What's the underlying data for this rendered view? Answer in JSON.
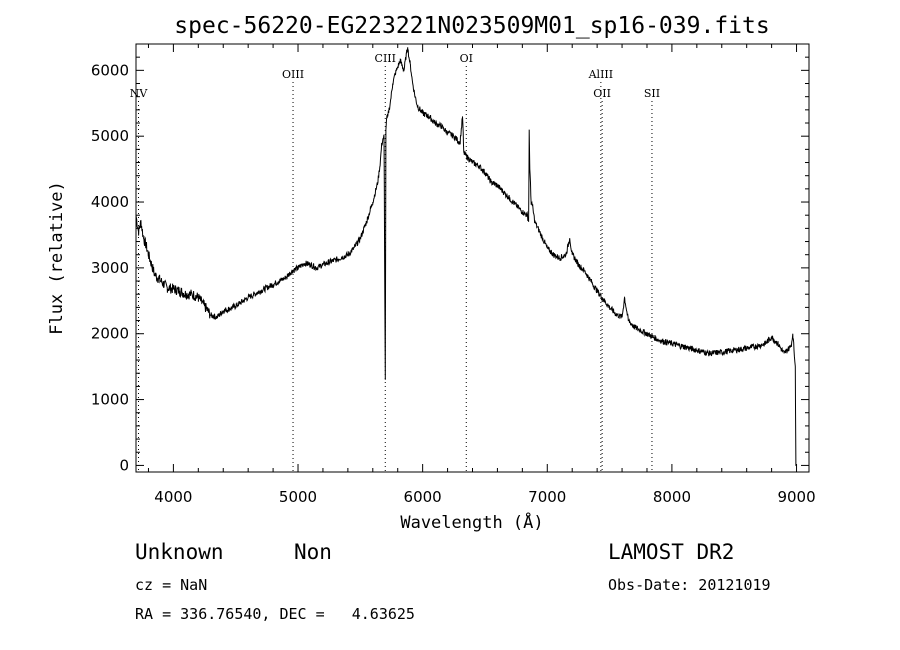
{
  "chart_data": {
    "type": "line",
    "title": "spec-56220-EG223221N023509M01_sp16-039.fits",
    "xlabel": "Wavelength (Å)",
    "ylabel": "Flux (relative)",
    "xlim": [
      3700,
      9100
    ],
    "ylim": [
      -100,
      6400
    ],
    "xticks": [
      4000,
      5000,
      6000,
      7000,
      8000,
      9000
    ],
    "yticks": [
      0,
      1000,
      2000,
      3000,
      4000,
      5000,
      6000
    ],
    "grid": false,
    "series": [
      {
        "x": [
          3700,
          3720,
          3740,
          3760,
          3780,
          3800,
          3850,
          3900,
          3950,
          4000,
          4050,
          4100,
          4150,
          4200,
          4250,
          4300,
          4350,
          4400,
          4450,
          4500,
          4600,
          4700,
          4800,
          4900,
          4950,
          5000,
          5050,
          5100,
          5150,
          5200,
          5300,
          5400,
          5450,
          5500,
          5550,
          5600,
          5640,
          5660,
          5670,
          5680,
          5690,
          5700,
          5705,
          5710,
          5720,
          5740,
          5760,
          5780,
          5800,
          5820,
          5850,
          5870,
          5880,
          5890,
          5900,
          5920,
          5940,
          5960,
          6000,
          6050,
          6100,
          6150,
          6200,
          6250,
          6300,
          6320,
          6330,
          6350,
          6400,
          6450,
          6500,
          6550,
          6600,
          6650,
          6700,
          6750,
          6800,
          6840,
          6850,
          6855,
          6860,
          6870,
          6880,
          6900,
          6950,
          7000,
          7050,
          7100,
          7150,
          7180,
          7200,
          7220,
          7250,
          7300,
          7350,
          7400,
          7450,
          7500,
          7550,
          7600,
          7620,
          7650,
          7700,
          7750,
          7800,
          7850,
          7900,
          8000,
          8100,
          8200,
          8300,
          8400,
          8500,
          8600,
          8700,
          8750,
          8800,
          8850,
          8900,
          8950,
          8960,
          8970,
          8980,
          8985,
          8990,
          8995,
          9000
        ],
        "y": [
          3800,
          3550,
          3700,
          3450,
          3350,
          3200,
          2900,
          2800,
          2700,
          2680,
          2650,
          2600,
          2600,
          2550,
          2420,
          2280,
          2250,
          2350,
          2380,
          2420,
          2550,
          2650,
          2750,
          2850,
          2950,
          3000,
          3070,
          3050,
          3000,
          3050,
          3120,
          3200,
          3300,
          3450,
          3700,
          4000,
          4300,
          4600,
          4850,
          4950,
          5000,
          1300,
          5100,
          5250,
          5300,
          5500,
          5800,
          5950,
          6050,
          6150,
          6000,
          6250,
          6350,
          6200,
          6100,
          5800,
          5600,
          5450,
          5350,
          5300,
          5200,
          5150,
          5050,
          5000,
          4900,
          5300,
          4750,
          4700,
          4600,
          4550,
          4450,
          4300,
          4250,
          4150,
          4050,
          3950,
          3850,
          3800,
          3700,
          5100,
          4500,
          4000,
          3950,
          3700,
          3500,
          3300,
          3200,
          3150,
          3200,
          3450,
          3200,
          3150,
          3050,
          2950,
          2800,
          2650,
          2520,
          2400,
          2300,
          2250,
          2550,
          2200,
          2100,
          2050,
          2000,
          1950,
          1900,
          1850,
          1800,
          1750,
          1700,
          1720,
          1750,
          1780,
          1820,
          1850,
          1950,
          1850,
          1700,
          1800,
          1850,
          2000,
          1750,
          1600,
          1500,
          0,
          0
        ]
      }
    ],
    "lines": [
      {
        "label": "NV",
        "x": 3720,
        "label_row": 2
      },
      {
        "label": "OIII",
        "x": 4960,
        "label_row": 1
      },
      {
        "label": "CIII",
        "x": 5700,
        "label_row": 0
      },
      {
        "label": "OI",
        "x": 6350,
        "label_row": 0
      },
      {
        "label": "AlIII",
        "x": 7430,
        "label_row": 1
      },
      {
        "label": "OII",
        "x": 7440,
        "label_row": 2
      },
      {
        "label": "SII",
        "x": 7840,
        "label_row": 2
      }
    ]
  },
  "info": {
    "class_label": "Unknown",
    "subclass_label": "Non",
    "survey": "LAMOST DR2",
    "cz": "cz = NaN",
    "obs_date": "Obs-Date: 20121019",
    "coords": "RA = 336.76540, DEC =   4.63625"
  }
}
